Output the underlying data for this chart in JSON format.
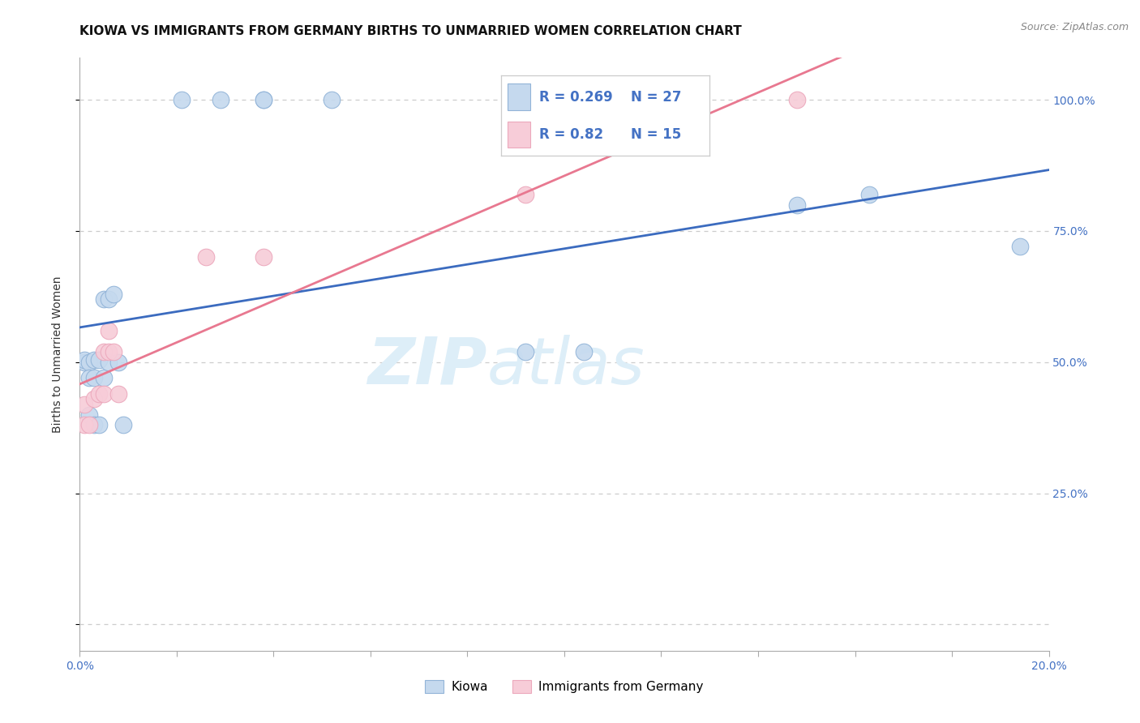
{
  "title": "KIOWA VS IMMIGRANTS FROM GERMANY BIRTHS TO UNMARRIED WOMEN CORRELATION CHART",
  "source": "Source: ZipAtlas.com",
  "ylabel": "Births to Unmarried Women",
  "xmin": 0.0,
  "xmax": 0.2,
  "ymin": -0.05,
  "ymax": 1.08,
  "ytick_vals": [
    0.0,
    0.25,
    0.5,
    0.75,
    1.0
  ],
  "ytick_labels": [
    "",
    "25.0%",
    "50.0%",
    "75.0%",
    "100.0%"
  ],
  "xtick_vals": [
    0.0,
    0.02,
    0.04,
    0.06,
    0.08,
    0.1,
    0.12,
    0.14,
    0.16,
    0.18,
    0.2
  ],
  "xtick_labels": [
    "0.0%",
    "",
    "",
    "",
    "",
    "",
    "",
    "",
    "",
    "",
    "20.0%"
  ],
  "kiowa_x": [
    0.001,
    0.001,
    0.002,
    0.002,
    0.002,
    0.003,
    0.003,
    0.003,
    0.004,
    0.004,
    0.005,
    0.005,
    0.006,
    0.006,
    0.007,
    0.008,
    0.009,
    0.021,
    0.029,
    0.038,
    0.038,
    0.052,
    0.092,
    0.104,
    0.148,
    0.163,
    0.194
  ],
  "kiowa_y": [
    0.5,
    0.505,
    0.5,
    0.47,
    0.4,
    0.505,
    0.47,
    0.38,
    0.505,
    0.38,
    0.62,
    0.47,
    0.62,
    0.5,
    0.63,
    0.5,
    0.38,
    1.0,
    1.0,
    1.0,
    1.0,
    1.0,
    0.52,
    0.52,
    0.8,
    0.82,
    0.72
  ],
  "germany_x": [
    0.001,
    0.001,
    0.002,
    0.003,
    0.004,
    0.005,
    0.005,
    0.006,
    0.006,
    0.007,
    0.008,
    0.026,
    0.038,
    0.092,
    0.148
  ],
  "germany_y": [
    0.38,
    0.42,
    0.38,
    0.43,
    0.44,
    0.52,
    0.44,
    0.56,
    0.52,
    0.52,
    0.44,
    0.7,
    0.7,
    0.82,
    1.0
  ],
  "kiowa_R": 0.269,
  "kiowa_N": 27,
  "germany_R": 0.82,
  "germany_N": 15,
  "blue_dot_color": "#c5d9ee",
  "blue_edge_color": "#92b4d8",
  "pink_dot_color": "#f7ccd8",
  "pink_edge_color": "#eca8bc",
  "blue_line_color": "#3b6bbf",
  "pink_line_color": "#e87890",
  "axis_tick_color": "#4472c4",
  "title_fontsize": 11,
  "axis_label_fontsize": 10,
  "tick_fontsize": 10,
  "legend_fontsize": 13
}
